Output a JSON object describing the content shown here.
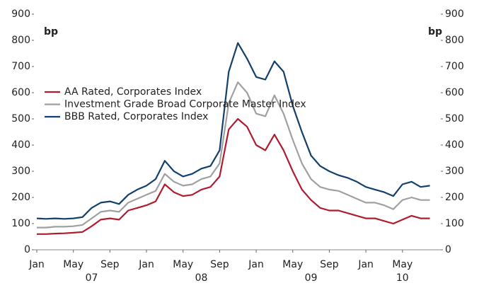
{
  "chart_data": {
    "type": "line",
    "y_label": "bp",
    "y2_label": "bp",
    "x": [
      "2007-01",
      "2007-02",
      "2007-03",
      "2007-04",
      "2007-05",
      "2007-06",
      "2007-07",
      "2007-08",
      "2007-09",
      "2007-10",
      "2007-11",
      "2007-12",
      "2008-01",
      "2008-02",
      "2008-03",
      "2008-04",
      "2008-05",
      "2008-06",
      "2008-07",
      "2008-08",
      "2008-09",
      "2008-10",
      "2008-11",
      "2008-12",
      "2009-01",
      "2009-02",
      "2009-03",
      "2009-04",
      "2009-05",
      "2009-06",
      "2009-07",
      "2009-08",
      "2009-09",
      "2009-10",
      "2009-11",
      "2009-12",
      "2010-01",
      "2010-02",
      "2010-03",
      "2010-04",
      "2010-05",
      "2010-06",
      "2010-07",
      "2010-08"
    ],
    "series": [
      {
        "name": "AA Rated, Corporates Index",
        "color": "#b01c2e",
        "values": [
          60,
          60,
          62,
          63,
          65,
          68,
          90,
          115,
          120,
          115,
          150,
          160,
          170,
          185,
          250,
          220,
          205,
          210,
          230,
          240,
          280,
          460,
          500,
          470,
          400,
          380,
          440,
          380,
          300,
          230,
          190,
          160,
          150,
          150,
          140,
          130,
          120,
          120,
          110,
          100,
          115,
          130,
          120,
          120
        ]
      },
      {
        "name": "Investment Grade Broad Corporate Master Index",
        "color": "#a0a0a0",
        "values": [
          85,
          85,
          88,
          88,
          90,
          95,
          120,
          145,
          150,
          145,
          180,
          195,
          210,
          225,
          290,
          260,
          245,
          250,
          270,
          280,
          330,
          560,
          640,
          600,
          520,
          510,
          590,
          520,
          420,
          330,
          270,
          240,
          230,
          225,
          210,
          195,
          180,
          180,
          170,
          155,
          190,
          200,
          190,
          190
        ]
      },
      {
        "name": "BBB Rated, Corporates Index",
        "color": "#12406a",
        "values": [
          120,
          118,
          120,
          118,
          120,
          125,
          160,
          180,
          185,
          175,
          210,
          230,
          245,
          270,
          340,
          300,
          280,
          290,
          310,
          320,
          380,
          680,
          790,
          730,
          660,
          650,
          720,
          680,
          550,
          450,
          360,
          320,
          300,
          285,
          275,
          260,
          240,
          230,
          220,
          205,
          250,
          260,
          240,
          245
        ]
      }
    ],
    "xticks": [
      {
        "value": "2007-01",
        "label": "Jan"
      },
      {
        "value": "2007-05",
        "label": "May"
      },
      {
        "value": "2007-09",
        "label": "Sep"
      },
      {
        "value": "2008-01",
        "label": "Jan"
      },
      {
        "value": "2008-05",
        "label": "May"
      },
      {
        "value": "2008-09",
        "label": "Sep"
      },
      {
        "value": "2009-01",
        "label": "Jan"
      },
      {
        "value": "2009-05",
        "label": "May"
      },
      {
        "value": "2009-09",
        "label": "Sep"
      },
      {
        "value": "2010-01",
        "label": "Jan"
      },
      {
        "value": "2010-05",
        "label": "May"
      }
    ],
    "year_labels": [
      {
        "value": "2007-07",
        "label": "07"
      },
      {
        "value": "2008-07",
        "label": "08"
      },
      {
        "value": "2009-07",
        "label": "09"
      },
      {
        "value": "2010-05",
        "label": "10"
      }
    ],
    "ylim": [
      0,
      900
    ],
    "yticks": [
      0,
      100,
      200,
      300,
      400,
      500,
      600,
      700,
      800,
      900
    ],
    "y2lim": [
      0,
      900
    ],
    "y2ticks": [
      0,
      100,
      200,
      300,
      400,
      500,
      600,
      700,
      800,
      900
    ],
    "legend": "upper left"
  }
}
